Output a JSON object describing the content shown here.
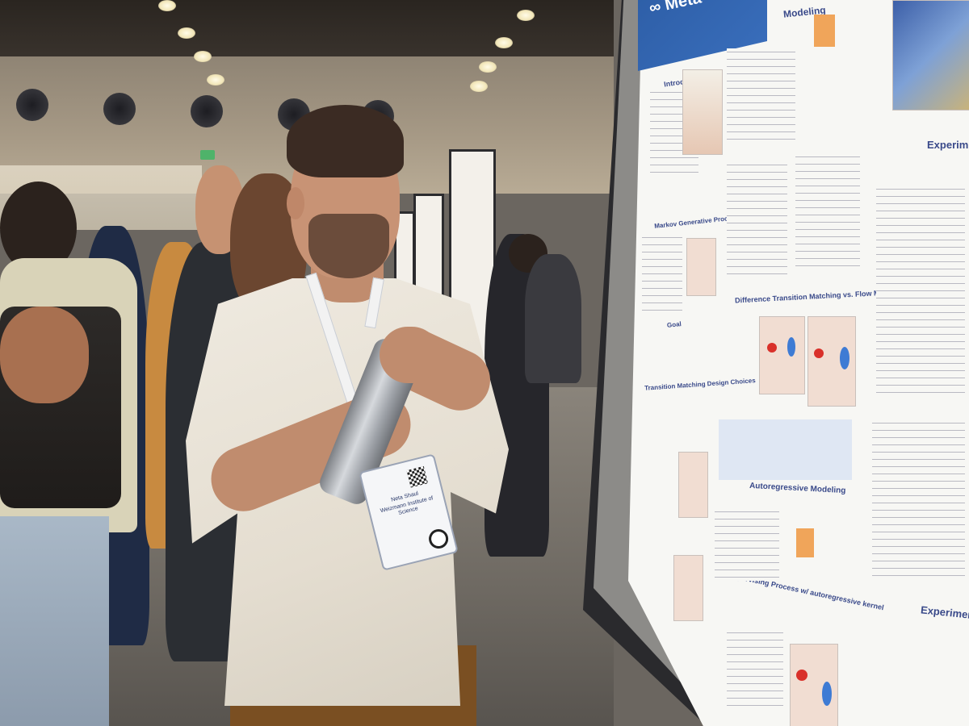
{
  "scene": {
    "poster": {
      "logo": "∞ Meta",
      "sections": {
        "modeling": "Modeling",
        "introduction": "Introduction",
        "markov": "Markov Generative Processes",
        "goal": "Goal",
        "design": "Transition Matching Design Choices",
        "difference": "Difference Transition Matching vs. Flow Matching",
        "autoregressive": "Autoregressive Modeling",
        "supervising": "Supervising Process w/ autoregressive kernel",
        "experiments_top": "Experim",
        "experiments_bottom": "Experiment"
      }
    },
    "badge": {
      "name": "Neta Shaul",
      "affiliation": "Weizmann Institute of Science"
    }
  }
}
